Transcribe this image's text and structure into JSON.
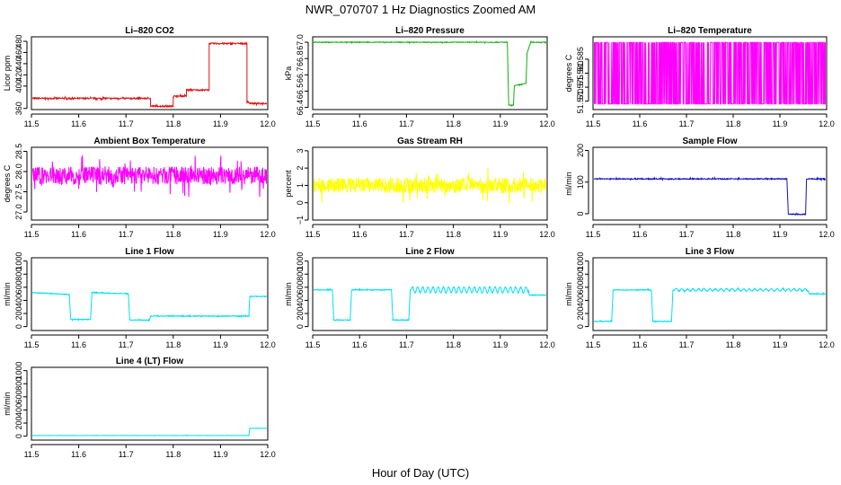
{
  "figure": {
    "title": "NWR_070707  1 Hz Diagnostics Zoomed AM",
    "xlabel": "Hour of Day (UTC)"
  },
  "chart_data": [
    {
      "id": "co2",
      "type": "line",
      "title": "Li–820 CO2",
      "ylabel": "Licor ppm",
      "color": "#e01010",
      "x": [
        11.5,
        11.752,
        11.752,
        11.8,
        11.8,
        11.828,
        11.828,
        11.876,
        11.876,
        11.956,
        11.956,
        11.966,
        12.0
      ],
      "y": [
        378,
        378,
        364,
        364,
        382,
        382,
        393,
        393,
        476,
        476,
        371,
        369,
        369
      ],
      "noise": 1.2,
      "xlim": [
        11.5,
        12.0
      ],
      "xticks": [
        11.5,
        11.6,
        11.7,
        11.8,
        11.9,
        12.0
      ],
      "ylim": [
        358,
        488
      ],
      "yticks": [
        360,
        400,
        420,
        440,
        460,
        480
      ],
      "ytick_labels": [
        "360",
        "400",
        "420",
        "440",
        "460",
        "480"
      ]
    },
    {
      "id": "pressure",
      "type": "line",
      "title": "Li–820 Pressure",
      "ylabel": "kPa",
      "color": "#10b010",
      "x": [
        11.5,
        11.915,
        11.918,
        11.92,
        11.928,
        11.93,
        11.955,
        11.957,
        11.965,
        12.0
      ],
      "y": [
        67.0,
        67.0,
        66.42,
        66.42,
        66.42,
        66.6,
        66.62,
        66.9,
        67.0,
        67.0
      ],
      "noise": 0.003,
      "xlim": [
        11.5,
        12.0
      ],
      "xticks": [
        11.5,
        11.6,
        11.7,
        11.8,
        11.9,
        12.0
      ],
      "ylim": [
        66.38,
        67.05
      ],
      "yticks": [
        66.4,
        66.55,
        66.7,
        66.85,
        67.0
      ],
      "ytick_labels": [
        "66.4",
        "66.5",
        "66.7",
        "66.8",
        "67.0"
      ]
    },
    {
      "id": "licor_temp",
      "type": "line",
      "title": "Li–820 Temperature",
      "ylabel": "degrees C",
      "color": "#ff00ff",
      "x": [
        11.5,
        12.0
      ],
      "y": [
        51.57,
        51.59
      ],
      "noise": 0.0,
      "toggle": [
        51.569,
        51.591
      ],
      "xlim": [
        11.5,
        12.0
      ],
      "xticks": [
        11.5,
        11.6,
        11.7,
        11.8,
        11.9,
        12.0
      ],
      "ylim": [
        51.567,
        51.593
      ],
      "yticks": [
        51.57,
        51.575,
        51.58,
        51.585
      ],
      "ytick_labels": [
        "51.570",
        "51.575",
        "51.580",
        "51.585"
      ]
    },
    {
      "id": "ambient",
      "type": "line",
      "title": "Ambient Box Temperature",
      "ylabel": "degrees C",
      "color": "#ff00ff",
      "x": [
        11.5,
        12.0
      ],
      "y": [
        27.9,
        27.9
      ],
      "noise": 0.22,
      "xlim": [
        11.5,
        12.0
      ],
      "xticks": [
        11.5,
        11.6,
        11.7,
        11.8,
        11.9,
        12.0
      ],
      "ylim": [
        26.8,
        28.6
      ],
      "yticks": [
        27.0,
        27.5,
        28.0,
        28.5
      ],
      "ytick_labels": [
        "27.0",
        "27.5",
        "28.0",
        "28.5"
      ]
    },
    {
      "id": "rh",
      "type": "line",
      "title": "Gas Stream RH",
      "ylabel": "percent",
      "color": "#ffff00",
      "x": [
        11.5,
        12.0
      ],
      "y": [
        1.0,
        1.0
      ],
      "noise": 0.45,
      "xlim": [
        11.5,
        12.0
      ],
      "xticks": [
        11.5,
        11.6,
        11.7,
        11.8,
        11.9,
        12.0
      ],
      "ylim": [
        -1,
        3.2
      ],
      "yticks": [
        -1,
        0,
        1,
        2,
        3
      ],
      "ytick_labels": [
        "−1",
        "0",
        "1",
        "2",
        "3"
      ]
    },
    {
      "id": "sample_flow",
      "type": "line",
      "title": "Sample Flow",
      "ylabel": "ml/min",
      "color": "#1010c0",
      "x": [
        11.5,
        11.915,
        11.918,
        11.955,
        11.957,
        12.0
      ],
      "y": [
        110,
        110,
        -2,
        -2,
        110,
        110
      ],
      "noise": 1.5,
      "xlim": [
        11.5,
        12.0
      ],
      "xticks": [
        11.5,
        11.6,
        11.7,
        11.8,
        11.9,
        12.0
      ],
      "ylim": [
        -20,
        210
      ],
      "yticks": [
        0,
        100,
        200
      ],
      "ytick_labels": [
        "0",
        "100",
        "200"
      ]
    },
    {
      "id": "line1",
      "type": "line",
      "title": "Line 1 Flow",
      "ylabel": "ml/min",
      "color": "#00e0f0",
      "x": [
        11.5,
        11.58,
        11.583,
        11.625,
        11.628,
        11.705,
        11.708,
        11.75,
        11.752,
        11.96,
        11.962,
        12.0
      ],
      "y": [
        520,
        490,
        110,
        110,
        520,
        500,
        100,
        100,
        160,
        160,
        460,
        460
      ],
      "noise": 6,
      "xlim": [
        11.5,
        12.0
      ],
      "xticks": [
        11.5,
        11.6,
        11.7,
        11.8,
        11.9,
        12.0
      ],
      "ylim": [
        -60,
        1050
      ],
      "yticks": [
        0,
        200,
        400,
        600,
        800,
        1000
      ],
      "ytick_labels": [
        "0",
        "200",
        "400",
        "600",
        "800",
        "1000"
      ]
    },
    {
      "id": "line2",
      "type": "line",
      "title": "Line 2 Flow",
      "ylabel": "ml/min",
      "color": "#00e0f0",
      "x": [
        11.5,
        11.542,
        11.545,
        11.58,
        11.583,
        11.668,
        11.671,
        11.705,
        11.708,
        11.96,
        11.962,
        12.0
      ],
      "y": [
        560,
        560,
        100,
        100,
        560,
        560,
        100,
        100,
        560,
        560,
        480,
        480
      ],
      "noise": 6,
      "wave": [
        11.71,
        11.96,
        45,
        0.011
      ],
      "xlim": [
        11.5,
        12.0
      ],
      "xticks": [
        11.5,
        11.6,
        11.7,
        11.8,
        11.9,
        12.0
      ],
      "ylim": [
        -60,
        1050
      ],
      "yticks": [
        0,
        200,
        400,
        600,
        800,
        1000
      ],
      "ytick_labels": [
        "0",
        "200",
        "400",
        "600",
        "800",
        "1000"
      ]
    },
    {
      "id": "line3",
      "type": "line",
      "title": "Line 3 Flow",
      "ylabel": "ml/min",
      "color": "#00e0f0",
      "x": [
        11.5,
        11.54,
        11.543,
        11.625,
        11.628,
        11.668,
        11.671,
        11.96,
        11.962,
        12.0
      ],
      "y": [
        80,
        80,
        560,
        560,
        80,
        80,
        560,
        560,
        500,
        500
      ],
      "noise": 6,
      "wave": [
        11.675,
        11.96,
        18,
        0.012
      ],
      "xlim": [
        11.5,
        12.0
      ],
      "xticks": [
        11.5,
        11.6,
        11.7,
        11.8,
        11.9,
        12.0
      ],
      "ylim": [
        -60,
        1050
      ],
      "yticks": [
        0,
        200,
        400,
        600,
        800,
        1000
      ],
      "ytick_labels": [
        "0",
        "200",
        "400",
        "600",
        "800",
        "1000"
      ]
    },
    {
      "id": "line4",
      "type": "line",
      "title": "Line 4 (LT) Flow",
      "ylabel": "ml/min",
      "color": "#00e0f0",
      "x": [
        11.5,
        11.96,
        11.962,
        12.0
      ],
      "y": [
        10,
        10,
        120,
        120
      ],
      "noise": 2,
      "xlim": [
        11.5,
        12.0
      ],
      "xticks": [
        11.5,
        11.6,
        11.7,
        11.8,
        11.9,
        12.0
      ],
      "ylim": [
        -60,
        1050
      ],
      "yticks": [
        0,
        200,
        400,
        600,
        800,
        1000
      ],
      "ytick_labels": [
        "0",
        "200",
        "400",
        "600",
        "800",
        "1000"
      ]
    }
  ]
}
